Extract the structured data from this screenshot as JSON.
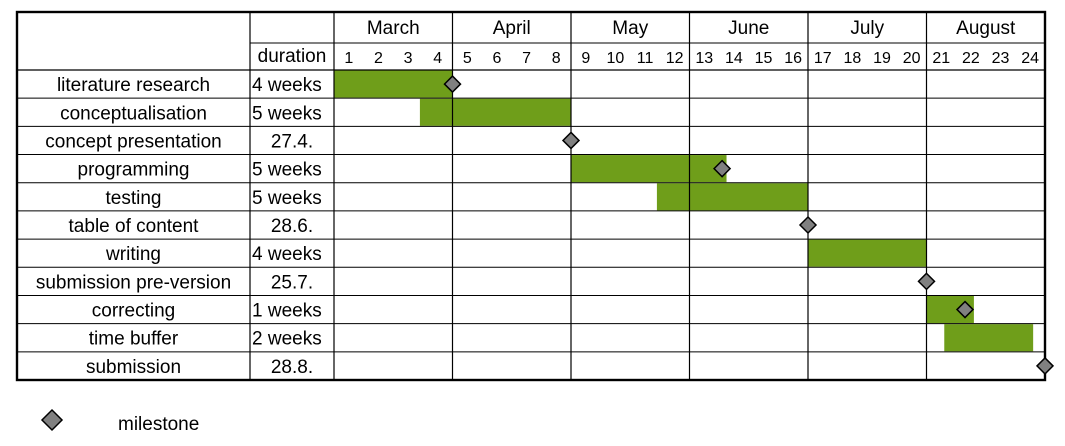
{
  "chart_data": {
    "type": "gantt",
    "columns": {
      "duration_header": "duration"
    },
    "months": [
      {
        "name": "March",
        "weeks": [
          1,
          2,
          3,
          4
        ]
      },
      {
        "name": "April",
        "weeks": [
          5,
          6,
          7,
          8
        ]
      },
      {
        "name": "May",
        "weeks": [
          9,
          10,
          11,
          12
        ]
      },
      {
        "name": "June",
        "weeks": [
          13,
          14,
          15,
          16
        ]
      },
      {
        "name": "July",
        "weeks": [
          17,
          18,
          19,
          20
        ]
      },
      {
        "name": "August",
        "weeks": [
          21,
          22,
          23,
          24
        ]
      }
    ],
    "tasks": [
      {
        "name": "literature research",
        "duration": "4 weeks",
        "start_week": 1,
        "end_week": 4,
        "milestone_week": 4.0
      },
      {
        "name": "conceptualisation",
        "duration": "5 weeks",
        "start_week": 3.9,
        "end_week": 8
      },
      {
        "name": "concept presentation",
        "duration": "27.4.",
        "milestone_week": 8.0
      },
      {
        "name": "programming",
        "duration": "5 weeks",
        "start_week": 9,
        "end_week": 13.25,
        "milestone_week": 13.1
      },
      {
        "name": "testing",
        "duration": "5 weeks",
        "start_week": 11.9,
        "end_week": 16
      },
      {
        "name": "table of content",
        "duration": "28.6.",
        "milestone_week": 16.0
      },
      {
        "name": "writing",
        "duration": "4 weeks",
        "start_week": 17,
        "end_week": 20
      },
      {
        "name": "submission pre-version",
        "duration": "25.7.",
        "milestone_week": 20.0
      },
      {
        "name": "correcting",
        "duration": "1 weeks",
        "start_week": 21,
        "end_week": 21.6,
        "milestone_week": 21.3
      },
      {
        "name": "time buffer",
        "duration": "2 weeks",
        "start_week": 21.6,
        "end_week": 23.6
      },
      {
        "name": "submission",
        "duration": "28.8.",
        "milestone_week": 24.0
      }
    ],
    "legend": {
      "label": "milestone",
      "placement": "bottom-left"
    },
    "colors": {
      "bar": "#6f9e1a",
      "milestone": "#808080",
      "grid": "#000000"
    }
  }
}
